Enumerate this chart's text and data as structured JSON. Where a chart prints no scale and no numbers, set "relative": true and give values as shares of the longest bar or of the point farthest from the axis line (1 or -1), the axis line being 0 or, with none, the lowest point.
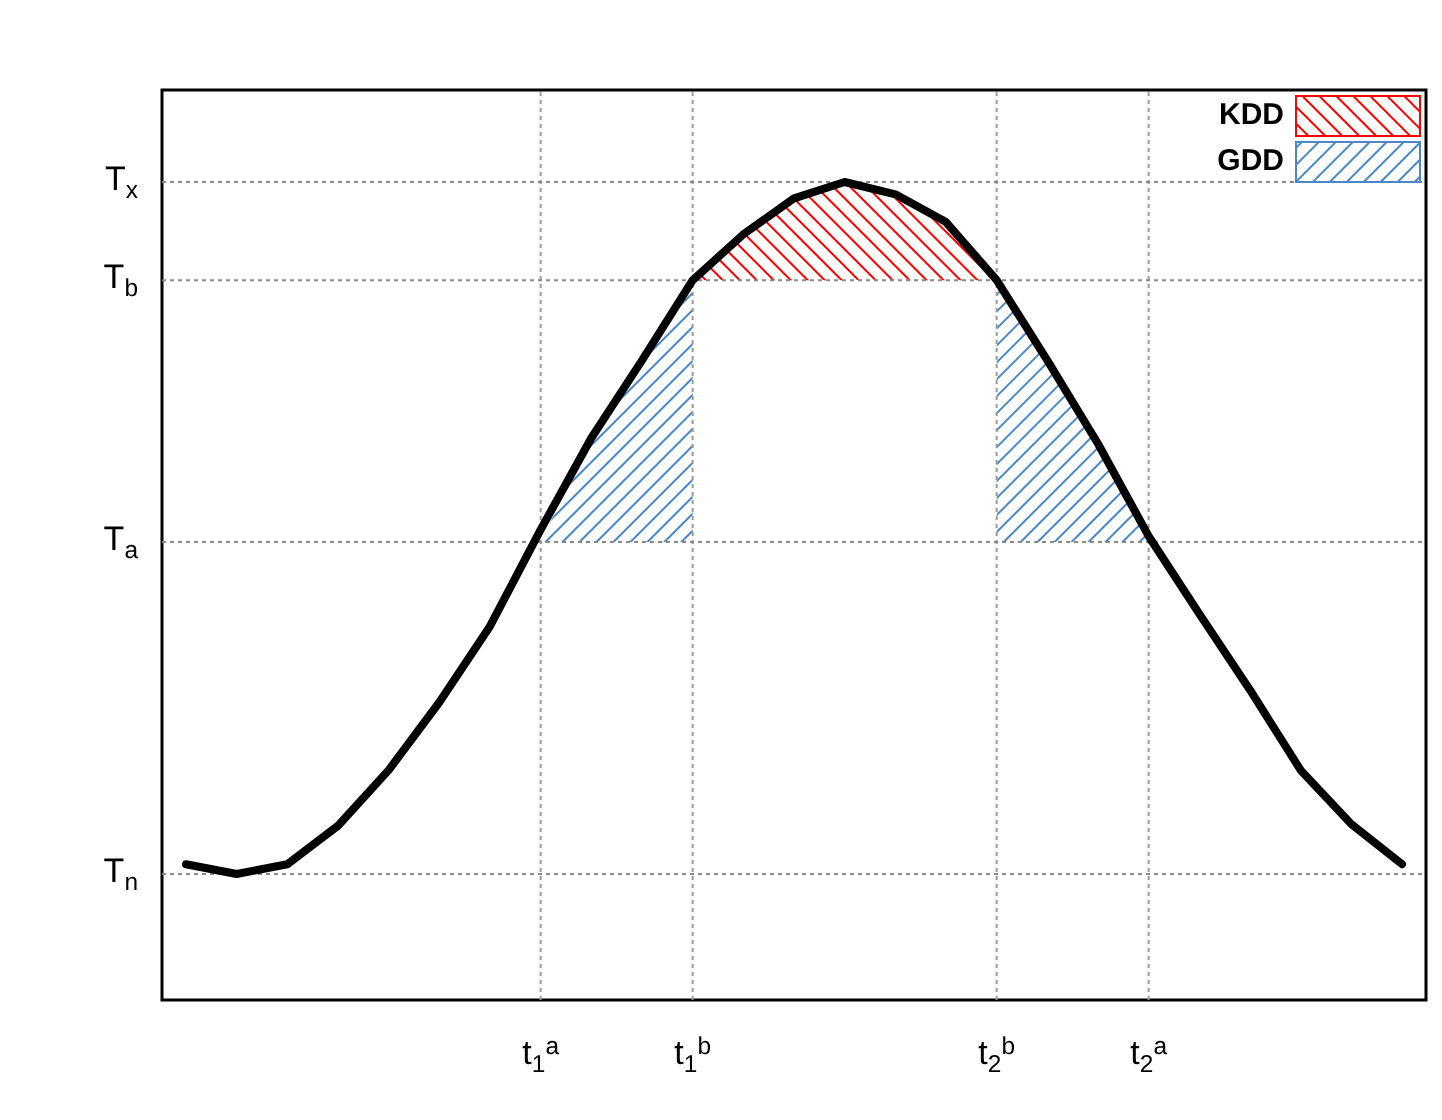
{
  "chart_data": {
    "type": "line",
    "relative": true,
    "grid": "x",
    "legend": "top right",
    "marker": "none",
    "line_style": "solid",
    "categories": [
      null,
      null,
      null,
      null,
      null,
      null,
      null,
      "t$_{1}$$^{a}$",
      null,
      null,
      "t$_{1}$$^{b}$",
      null,
      null,
      null,
      null,
      null,
      "t$_{2}$$^{b}$",
      null,
      null,
      "t$_{2}$$^{a}$",
      null,
      null,
      null,
      null,
      null
    ],
    "series": [
      {
        "color": "#000000",
        "values": [
          0.166,
          0.154,
          0.166,
          0.213,
          0.281,
          0.364,
          0.457,
          0.575,
          0.687,
          0.782,
          0.88,
          0.936,
          0.98,
          1,
          0.985,
          0.951,
          0.88,
          0.782,
          0.68,
          0.567,
          0.472,
          0.379,
          0.281,
          0.215,
          0.166
        ]
      },
      {
        "type": "area",
        "name": "KDD",
        "color": "#ff0000",
        "values": [
          null,
          null,
          null,
          null,
          null,
          null,
          null,
          null,
          null,
          null,
          0.88,
          0.936,
          0.98,
          1,
          0.985,
          0.951,
          0.88,
          null,
          null,
          null,
          null,
          null,
          null,
          null,
          null
        ]
      },
      {
        "type": "area",
        "name": "GDD",
        "color": "#4a86c8",
        "values": [
          null,
          null,
          null,
          null,
          null,
          null,
          null,
          0.56,
          0.687,
          0.782,
          0.88,
          null,
          null,
          null,
          null,
          null,
          0.88,
          0.782,
          0.68,
          0.56,
          null,
          null,
          null,
          null,
          null
        ]
      }
    ],
    "ref_lines": [
      {
        "axis": "y",
        "value": 1,
        "label": "T$_{x}$",
        "color": "#888888",
        "line_style": "dotted"
      },
      {
        "axis": "y",
        "value": 0.88,
        "label": "T$_{b}$",
        "color": "#888888",
        "line_style": "dotted"
      },
      {
        "axis": "y",
        "value": 0.56,
        "label": "T$_{a}$",
        "color": "#888888",
        "line_style": "dotted"
      },
      {
        "axis": "y",
        "value": 0.154,
        "label": "T$_{n}$",
        "color": "#888888",
        "line_style": "dotted"
      }
    ]
  }
}
